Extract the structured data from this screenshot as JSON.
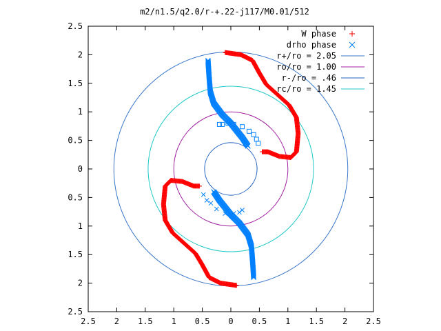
{
  "chart_data": {
    "type": "scatter",
    "title": "m2/n1.5/q2.0/r-+.22-j117/M0.01/512",
    "xlabel": "",
    "ylabel": "",
    "xlim": [
      -2.5,
      2.5
    ],
    "ylim": [
      -2.5,
      2.5
    ],
    "x_tick_values": [
      -2.5,
      -2,
      -1.5,
      -1,
      -0.5,
      0,
      0.5,
      1,
      1.5,
      2,
      2.5
    ],
    "x_tick_labels": [
      "2.5",
      "2",
      "1.5",
      "1",
      "0.5",
      "0",
      "0.5",
      "1",
      "1.5",
      "2",
      "2.5"
    ],
    "y_tick_values": [
      2.5,
      2,
      1.5,
      1,
      0.5,
      0,
      -0.5,
      -1,
      -1.5,
      -2,
      -2.5
    ],
    "y_tick_labels": [
      "2.5",
      "2",
      "1.5",
      "1",
      "0.5",
      "0",
      "0.5",
      "1",
      "1.5",
      "2",
      "2.5"
    ],
    "grid": false,
    "legend_position": "top-right",
    "series": [
      {
        "name": "W phase",
        "marker": "plus",
        "color": "#ff0000",
        "arms": [
          [
            [
              -0.1,
              2.04
            ],
            [
              0.18,
              2.0
            ],
            [
              0.38,
              1.9
            ],
            [
              0.5,
              1.68
            ],
            [
              0.62,
              1.48
            ],
            [
              0.82,
              1.3
            ],
            [
              1.02,
              1.12
            ],
            [
              1.15,
              0.9
            ],
            [
              1.18,
              0.62
            ],
            [
              1.15,
              0.3
            ],
            [
              1.05,
              0.2
            ],
            [
              0.85,
              0.22
            ],
            [
              0.65,
              0.3
            ],
            [
              0.55,
              0.3
            ]
          ],
          [
            [
              0.1,
              -2.04
            ],
            [
              -0.18,
              -2.0
            ],
            [
              -0.38,
              -1.9
            ],
            [
              -0.5,
              -1.68
            ],
            [
              -0.62,
              -1.48
            ],
            [
              -0.82,
              -1.3
            ],
            [
              -1.02,
              -1.12
            ],
            [
              -1.15,
              -0.9
            ],
            [
              -1.18,
              -0.62
            ],
            [
              -1.15,
              -0.3
            ],
            [
              -1.05,
              -0.2
            ],
            [
              -0.85,
              -0.22
            ],
            [
              -0.65,
              -0.3
            ],
            [
              -0.55,
              -0.3
            ]
          ]
        ]
      },
      {
        "name": "drho phase",
        "marker": "cross",
        "color": "#0080ff",
        "arms": [
          [
            [
              -0.4,
              1.9
            ],
            [
              -0.38,
              1.6
            ],
            [
              -0.36,
              1.35
            ],
            [
              -0.3,
              1.15
            ],
            [
              -0.15,
              0.95
            ],
            [
              0.0,
              0.8
            ],
            [
              0.2,
              0.55
            ],
            [
              0.3,
              0.4
            ]
          ],
          [
            [
              0.4,
              -1.9
            ],
            [
              0.38,
              -1.6
            ],
            [
              0.36,
              -1.35
            ],
            [
              0.3,
              -1.15
            ],
            [
              0.15,
              -0.95
            ],
            [
              0.0,
              -0.8
            ],
            [
              -0.2,
              -0.55
            ],
            [
              -0.3,
              -0.4
            ]
          ]
        ],
        "sparse_squares": [
          [
            -0.2,
            0.78
          ],
          [
            -0.15,
            0.78
          ],
          [
            -0.05,
            0.8
          ],
          [
            0.05,
            0.78
          ],
          [
            0.2,
            0.74
          ],
          [
            0.32,
            0.66
          ],
          [
            0.4,
            0.6
          ],
          [
            0.45,
            0.52
          ],
          [
            0.48,
            0.45
          ]
        ],
        "sparse_crosses": [
          [
            -0.48,
            -0.45
          ],
          [
            -0.42,
            -0.55
          ],
          [
            -0.35,
            -0.6
          ],
          [
            -0.25,
            -0.7
          ],
          [
            -0.1,
            -0.78
          ],
          [
            0.05,
            -0.78
          ],
          [
            0.15,
            -0.76
          ],
          [
            0.2,
            -0.72
          ]
        ]
      }
    ],
    "circles": [
      {
        "name": "r+/ro = 2.05",
        "radius": 2.05,
        "color": "#3876c9"
      },
      {
        "name": "ro/ro = 1.00",
        "radius": 1.0,
        "color": "#a01fa0"
      },
      {
        "name": "r-/ro = .46",
        "radius": 0.46,
        "color": "#2060c0"
      },
      {
        "name": "rc/ro = 1.45",
        "radius": 1.45,
        "color": "#20c8c8"
      }
    ]
  }
}
